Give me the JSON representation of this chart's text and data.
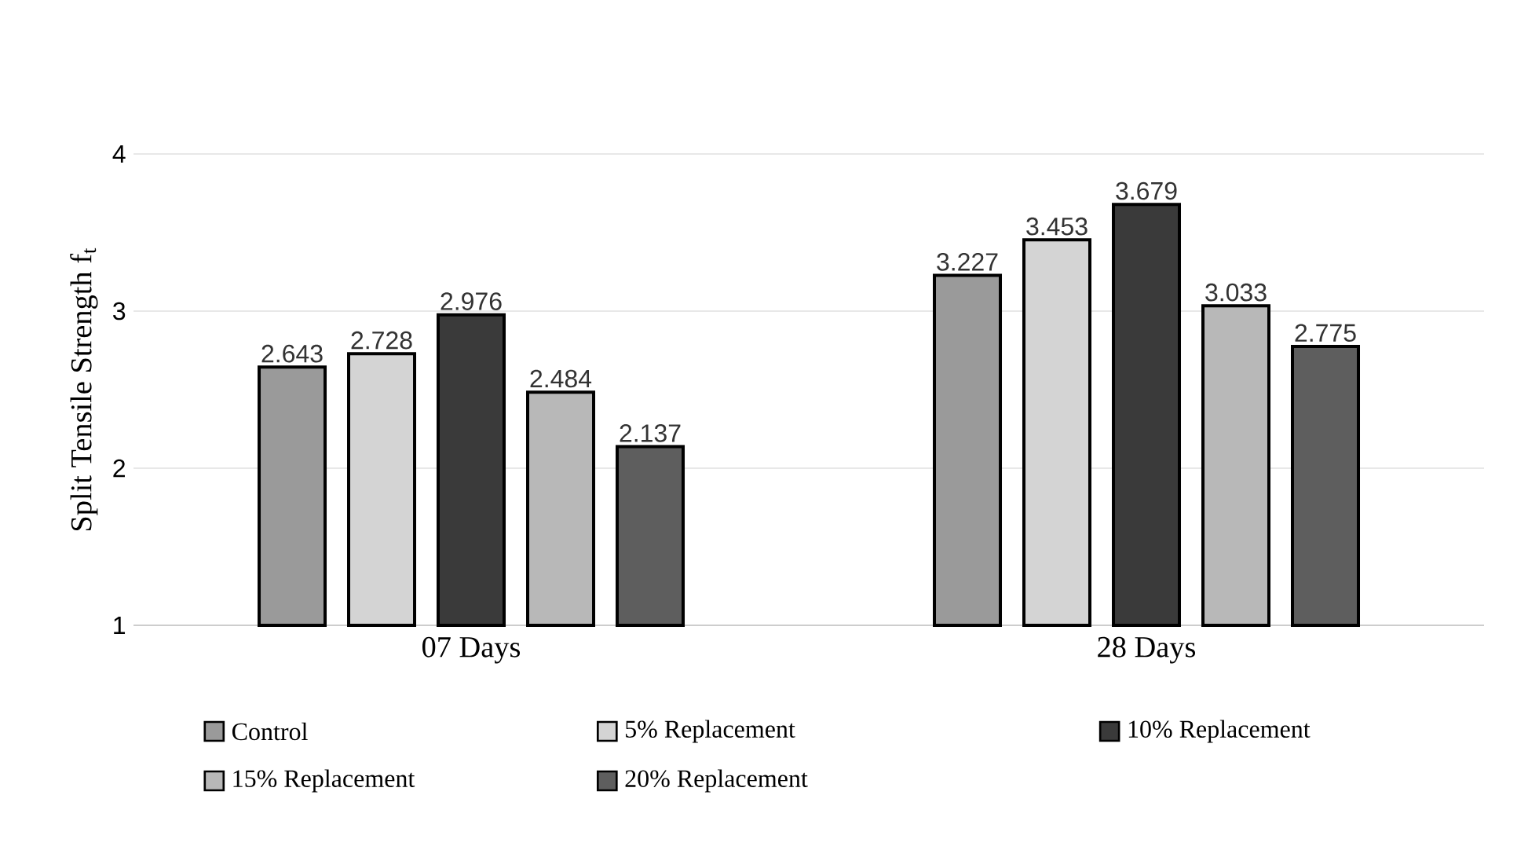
{
  "chart_data": {
    "type": "bar",
    "ylabel": "Split Tensile Strength f$_{t}$",
    "categories": [
      "07 Days",
      "28 Days"
    ],
    "series": [
      {
        "name": "Control",
        "color": "#9a9a9a",
        "values": [
          2.643,
          3.227
        ]
      },
      {
        "name": "5% Replacement",
        "color": "#d4d4d4",
        "values": [
          2.728,
          3.453
        ]
      },
      {
        "name": "10% Replacement",
        "color": "#3a3a3a",
        "values": [
          2.976,
          3.679
        ]
      },
      {
        "name": "15% Replacement",
        "color": "#b8b8b8",
        "values": [
          2.484,
          3.033
        ]
      },
      {
        "name": "20% Replacement",
        "color": "#5e5e5e",
        "values": [
          2.137,
          2.775
        ]
      }
    ],
    "ylim": [
      1,
      4
    ],
    "yticks": [
      1,
      2,
      3,
      4
    ],
    "grid": "y",
    "legend": "bottom",
    "data_labels": true
  }
}
